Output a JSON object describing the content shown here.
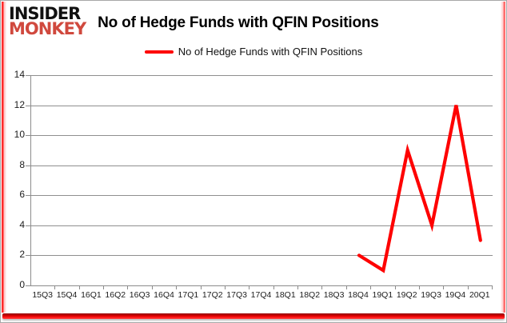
{
  "logo": {
    "line1": "INSIDER",
    "line2": "MONKEY"
  },
  "header": {
    "title": "No of Hedge Funds with QFIN Positions"
  },
  "legend": {
    "label": "No of Hedge Funds with QFIN Positions"
  },
  "colors": {
    "series_red": "#fe0000",
    "logo_black": "#111111",
    "logo_red": "#d0493e",
    "gridline_grey": "#8f8f8f",
    "bottom_border_red": "#ff0000"
  },
  "chart_data": {
    "type": "line",
    "title": "No of Hedge Funds with QFIN Positions",
    "categories": [
      "15Q3",
      "15Q4",
      "16Q1",
      "16Q2",
      "16Q3",
      "16Q4",
      "17Q1",
      "17Q2",
      "17Q3",
      "17Q4",
      "18Q1",
      "18Q2",
      "18Q3",
      "18Q4",
      "19Q1",
      "19Q2",
      "19Q3",
      "19Q4",
      "20Q1"
    ],
    "series": [
      {
        "name": "No of Hedge Funds with QFIN Positions",
        "color": "#fe0000",
        "values": [
          null,
          null,
          null,
          null,
          null,
          null,
          null,
          null,
          null,
          null,
          null,
          null,
          null,
          2,
          1,
          9,
          4,
          12,
          3
        ]
      }
    ],
    "xlabel": "",
    "ylabel": "",
    "ylim": [
      0,
      14
    ],
    "yticks": [
      0,
      2,
      4,
      6,
      8,
      10,
      12,
      14
    ],
    "grid": true,
    "legend_position": "top-center"
  }
}
